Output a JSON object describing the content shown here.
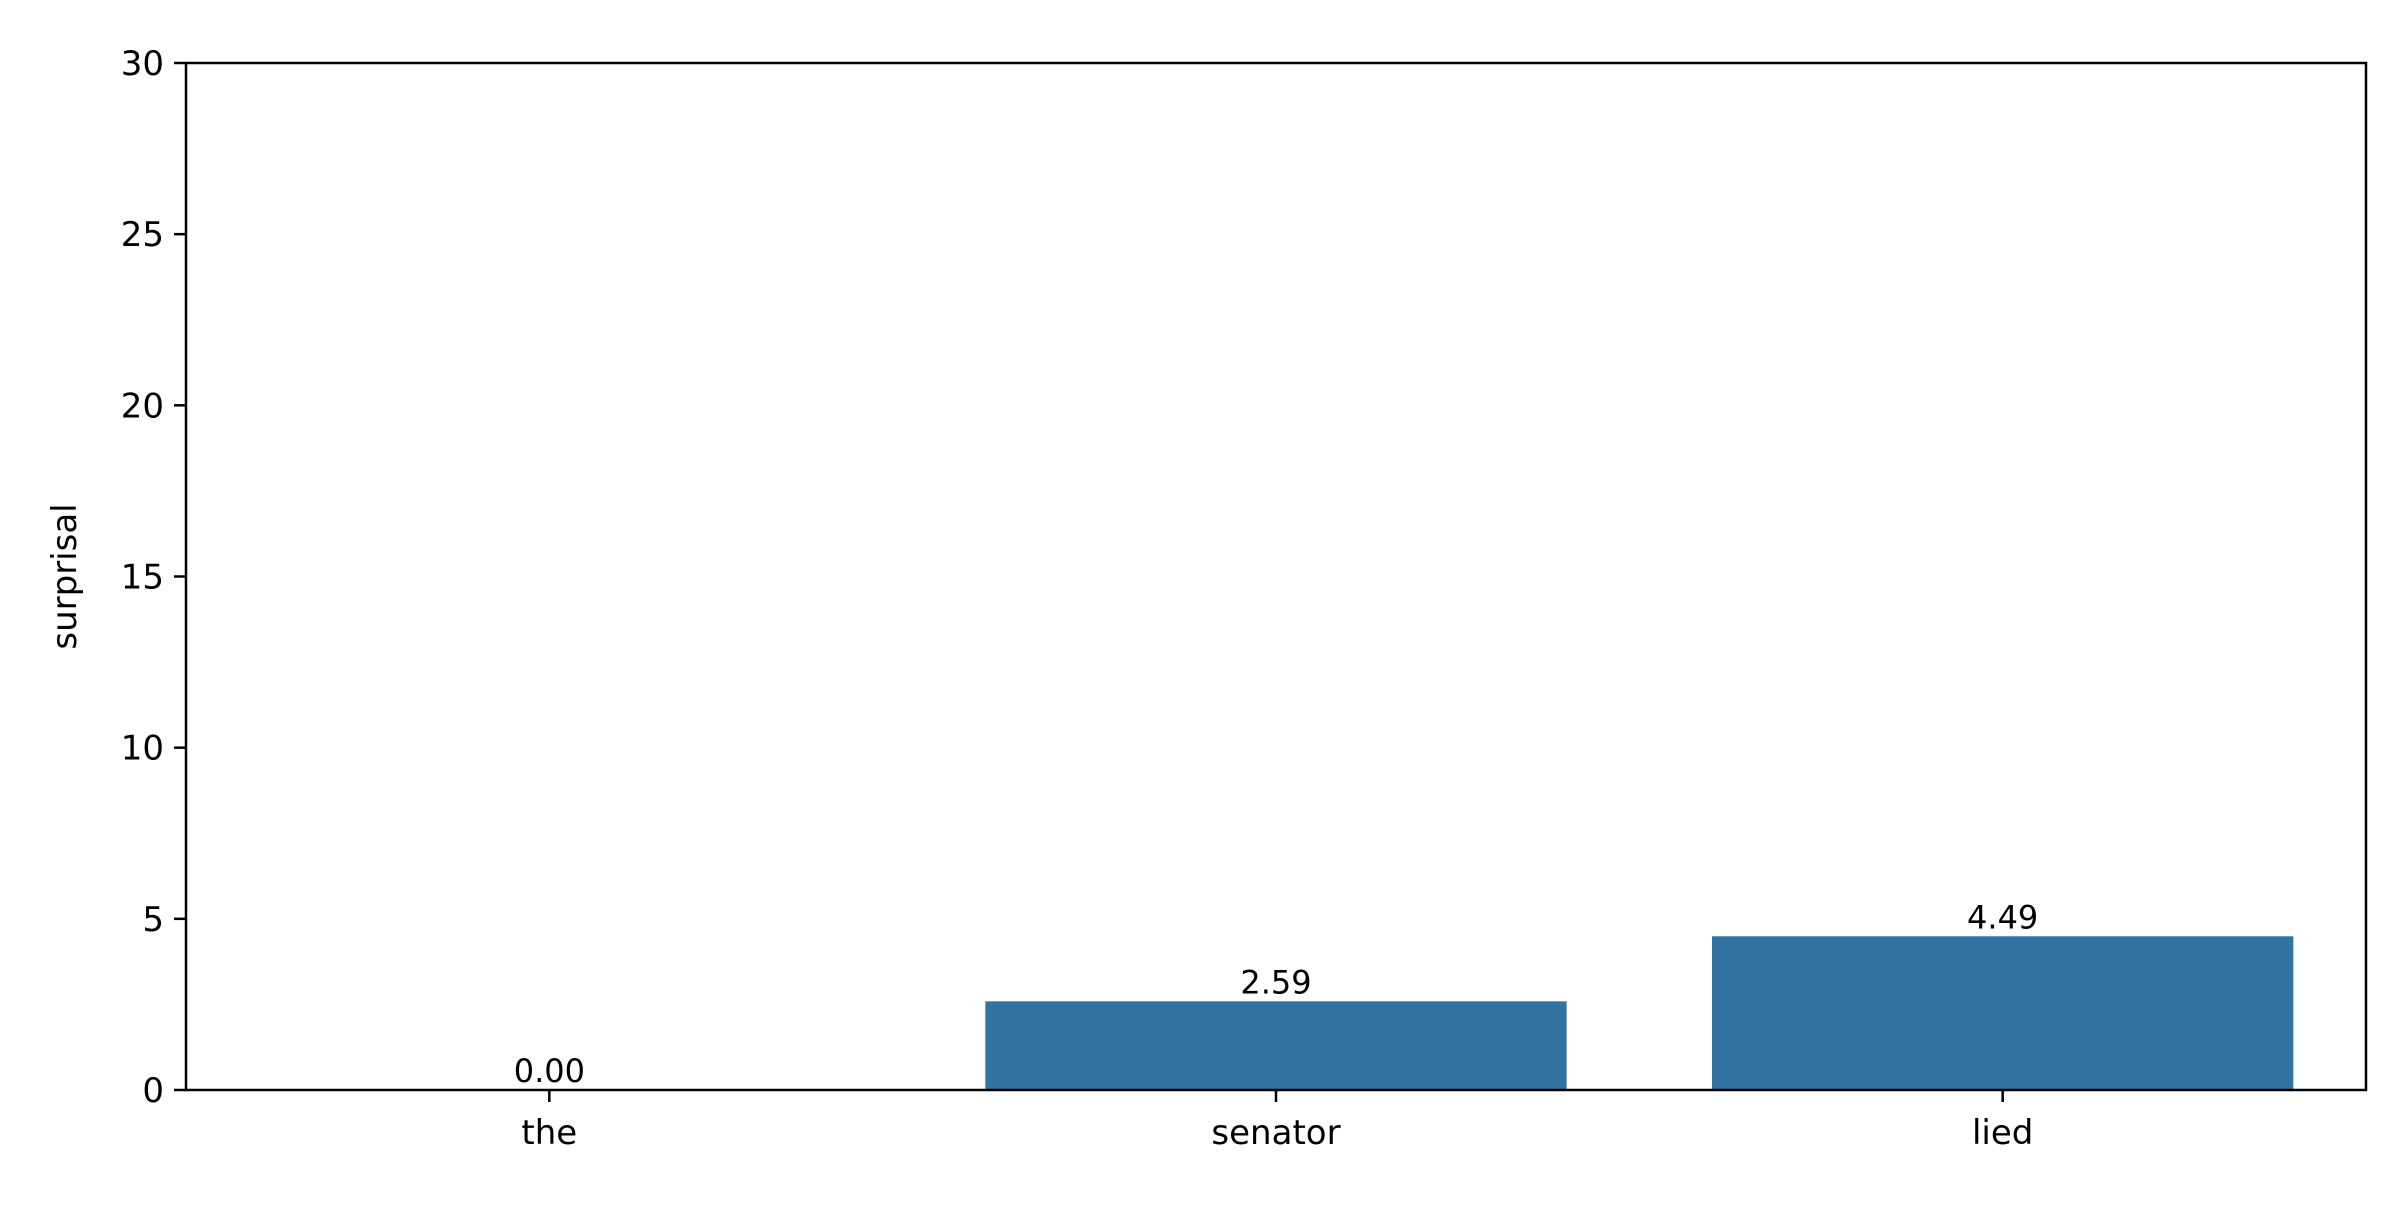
{
  "chart_data": {
    "type": "bar",
    "categories": [
      "the",
      "senator",
      "lied"
    ],
    "values": [
      0.0,
      2.59,
      4.49
    ],
    "data_labels": [
      "0.00",
      "2.59",
      "4.49"
    ],
    "title": "",
    "xlabel": "",
    "ylabel": "surprisal",
    "ylim": [
      0,
      30
    ],
    "yticks": [
      0,
      5,
      10,
      15,
      20,
      25,
      30
    ],
    "grid": false,
    "bar_color": "#3274a1"
  }
}
